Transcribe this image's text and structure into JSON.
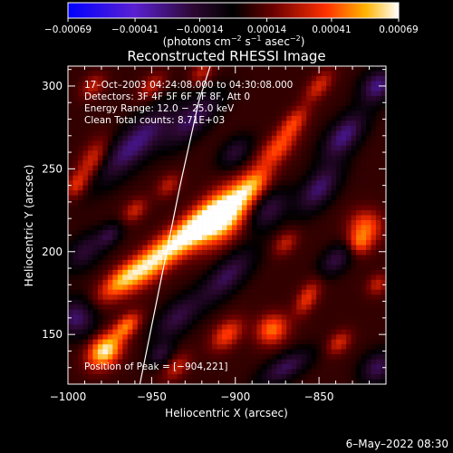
{
  "chart_data": {
    "type": "heatmap",
    "title": "Reconstructed RHESSI Image",
    "xlabel": "Heliocentric X (arcsec)",
    "ylabel": "Heliocentric Y (arcsec)",
    "xlim": [
      -1000,
      -810
    ],
    "ylim": [
      120,
      312
    ],
    "x_ticks": [
      -1000,
      -950,
      -900,
      -850
    ],
    "x_tick_labels": [
      "−1000",
      "−950",
      "−900",
      "−850"
    ],
    "y_ticks": [
      150,
      200,
      250,
      300
    ],
    "y_tick_labels": [
      "150",
      "200",
      "250",
      "300"
    ],
    "colorbar": {
      "range": [
        -0.00069,
        0.00069
      ],
      "ticks": [
        -0.00069,
        -0.00041,
        -0.00014,
        0.00014,
        0.00041,
        0.00069
      ],
      "tick_labels": [
        "−0.00069",
        "−0.00041",
        "−0.00014",
        "0.00014",
        "0.00041",
        "0.00069"
      ],
      "unit_main": "(photons cm",
      "unit_exp1": "−2",
      "unit_mid1": " s",
      "unit_exp2": "−1",
      "unit_mid2": " asec",
      "unit_exp3": "−2",
      "unit_end": ")"
    },
    "info_lines": [
      "17–Oct–2003 04:24:08.000 to 04:30:08.000",
      "Detectors: 3F 4F 5F 6F 7F 8F, Att 0",
      "Energy Range: 12.0 − 25.0 keV",
      "Clean     Total counts: 8.71E+03"
    ],
    "peak_label": "Position of Peak = [−904,221]",
    "peak": [
      -904,
      221
    ],
    "limb_points": [
      [
        -957,
        120
      ],
      [
        -945,
        180
      ],
      [
        -933,
        240
      ],
      [
        -922,
        290
      ],
      [
        -915,
        312
      ]
    ],
    "blobs": [
      {
        "x": -907,
        "y": 222,
        "a": 14,
        "b": 8,
        "angle": 50,
        "amp": 1.0
      },
      {
        "x": -925,
        "y": 213,
        "a": 14,
        "b": 6,
        "angle": 45,
        "amp": 0.75
      },
      {
        "x": -948,
        "y": 195,
        "a": 16,
        "b": 6,
        "angle": 45,
        "amp": 0.72
      },
      {
        "x": -968,
        "y": 183,
        "a": 12,
        "b": 5,
        "angle": 40,
        "amp": 0.58
      },
      {
        "x": -890,
        "y": 240,
        "a": 10,
        "b": 5,
        "angle": 45,
        "amp": 0.55
      },
      {
        "x": -875,
        "y": 262,
        "a": 10,
        "b": 5,
        "angle": 45,
        "amp": 0.45
      },
      {
        "x": -865,
        "y": 278,
        "a": 8,
        "b": 4,
        "angle": 50,
        "amp": 0.4
      },
      {
        "x": -850,
        "y": 300,
        "a": 8,
        "b": 4,
        "angle": 50,
        "amp": 0.35
      },
      {
        "x": -978,
        "y": 140,
        "a": 8,
        "b": 6,
        "angle": 45,
        "amp": 0.85
      },
      {
        "x": -965,
        "y": 155,
        "a": 7,
        "b": 4,
        "angle": 45,
        "amp": 0.55
      },
      {
        "x": -985,
        "y": 255,
        "a": 10,
        "b": 5,
        "angle": 60,
        "amp": 0.4
      },
      {
        "x": -995,
        "y": 240,
        "a": 6,
        "b": 4,
        "angle": 60,
        "amp": 0.35
      },
      {
        "x": -985,
        "y": 300,
        "a": 6,
        "b": 4,
        "angle": 45,
        "amp": 0.3
      },
      {
        "x": -950,
        "y": 300,
        "a": 7,
        "b": 4,
        "angle": 45,
        "amp": 0.3
      },
      {
        "x": -920,
        "y": 308,
        "a": 6,
        "b": 4,
        "angle": 45,
        "amp": 0.3
      },
      {
        "x": -822,
        "y": 215,
        "a": 7,
        "b": 7,
        "angle": 0,
        "amp": 0.5
      },
      {
        "x": -826,
        "y": 205,
        "a": 5,
        "b": 5,
        "angle": 0,
        "amp": 0.4
      },
      {
        "x": -905,
        "y": 150,
        "a": 8,
        "b": 5,
        "angle": 45,
        "amp": 0.45
      },
      {
        "x": -878,
        "y": 153,
        "a": 7,
        "b": 6,
        "angle": 40,
        "amp": 0.55
      },
      {
        "x": -857,
        "y": 172,
        "a": 8,
        "b": 4,
        "angle": 60,
        "amp": 0.4
      },
      {
        "x": -838,
        "y": 145,
        "a": 6,
        "b": 4,
        "angle": 45,
        "amp": 0.35
      },
      {
        "x": -815,
        "y": 180,
        "a": 5,
        "b": 4,
        "angle": 45,
        "amp": 0.3
      },
      {
        "x": -935,
        "y": 130,
        "a": 7,
        "b": 4,
        "angle": 45,
        "amp": 0.3
      },
      {
        "x": -870,
        "y": 205,
        "a": 6,
        "b": 4,
        "angle": 45,
        "amp": 0.3
      },
      {
        "x": -960,
        "y": 225,
        "a": 6,
        "b": 4,
        "angle": 45,
        "amp": 0.32
      },
      {
        "x": -940,
        "y": 240,
        "a": 6,
        "b": 4,
        "angle": 45,
        "amp": 0.28
      }
    ],
    "valleys": [
      {
        "x": -960,
        "y": 265,
        "a": 22,
        "b": 7,
        "angle": 45,
        "amp": -0.55
      },
      {
        "x": -925,
        "y": 280,
        "a": 15,
        "b": 6,
        "angle": 45,
        "amp": -0.45
      },
      {
        "x": -880,
        "y": 225,
        "a": 10,
        "b": 6,
        "angle": 45,
        "amp": -0.4
      },
      {
        "x": -850,
        "y": 238,
        "a": 12,
        "b": 6,
        "angle": 50,
        "amp": -0.5
      },
      {
        "x": -835,
        "y": 270,
        "a": 12,
        "b": 6,
        "angle": 50,
        "amp": -0.55
      },
      {
        "x": -905,
        "y": 185,
        "a": 15,
        "b": 6,
        "angle": 45,
        "amp": -0.45
      },
      {
        "x": -935,
        "y": 160,
        "a": 12,
        "b": 6,
        "angle": 45,
        "amp": -0.4
      },
      {
        "x": -995,
        "y": 160,
        "a": 8,
        "b": 8,
        "angle": 45,
        "amp": -0.5
      },
      {
        "x": -990,
        "y": 200,
        "a": 10,
        "b": 6,
        "angle": 45,
        "amp": -0.35
      },
      {
        "x": -870,
        "y": 130,
        "a": 12,
        "b": 5,
        "angle": 30,
        "amp": -0.45
      },
      {
        "x": -840,
        "y": 195,
        "a": 8,
        "b": 5,
        "angle": 45,
        "amp": -0.4
      },
      {
        "x": -815,
        "y": 130,
        "a": 8,
        "b": 6,
        "angle": 45,
        "amp": -0.45
      },
      {
        "x": -815,
        "y": 300,
        "a": 8,
        "b": 6,
        "angle": 45,
        "amp": -0.55
      },
      {
        "x": -900,
        "y": 260,
        "a": 8,
        "b": 5,
        "angle": 45,
        "amp": -0.35
      },
      {
        "x": -975,
        "y": 210,
        "a": 6,
        "b": 4,
        "angle": 45,
        "amp": -0.35
      },
      {
        "x": -945,
        "y": 138,
        "a": 6,
        "b": 4,
        "angle": 45,
        "amp": -0.35
      }
    ]
  },
  "footer": {
    "date": "6–May–2022 08:30"
  }
}
